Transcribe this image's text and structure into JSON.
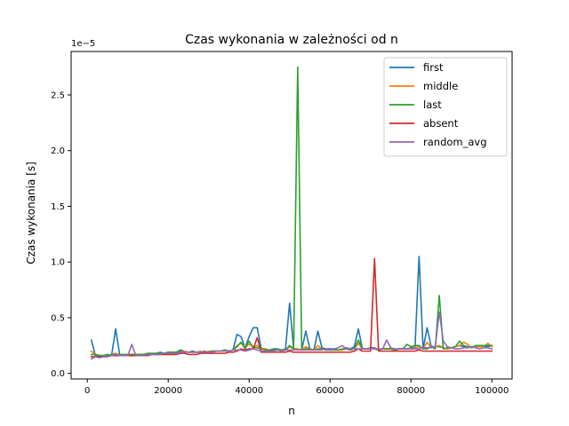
{
  "chart_data": {
    "type": "line",
    "title": "Czas wykonania w zależności od n",
    "xlabel": "n",
    "ylabel": "Czas wykonania [s]",
    "y_offset_label": "1e−5",
    "xlim": [
      -4000,
      105000
    ],
    "ylim": [
      -0.05,
      2.89
    ],
    "xticks": [
      0,
      20000,
      40000,
      60000,
      80000,
      100000
    ],
    "xtick_labels": [
      "0",
      "20000",
      "40000",
      "60000",
      "80000",
      "100000"
    ],
    "yticks": [
      0.0,
      0.5,
      1.0,
      1.5,
      2.0,
      2.5
    ],
    "ytick_labels": [
      "0.0",
      "0.5",
      "1.0",
      "1.5",
      "2.0",
      "2.5"
    ],
    "grid": false,
    "legend_position": "top-right",
    "x": [
      1000,
      2000,
      3000,
      4000,
      5000,
      6000,
      7000,
      8000,
      9000,
      10000,
      11000,
      12000,
      13000,
      14000,
      15000,
      16000,
      17000,
      18000,
      19000,
      20000,
      21000,
      22000,
      23000,
      24000,
      25000,
      26000,
      27000,
      28000,
      29000,
      30000,
      31000,
      32000,
      33000,
      34000,
      35000,
      36000,
      37000,
      38000,
      39000,
      40000,
      41000,
      42000,
      43000,
      44000,
      45000,
      46000,
      47000,
      48000,
      49000,
      50000,
      51000,
      52000,
      53000,
      54000,
      55000,
      56000,
      57000,
      58000,
      59000,
      60000,
      61000,
      62000,
      63000,
      64000,
      65000,
      66000,
      67000,
      68000,
      69000,
      70000,
      71000,
      72000,
      73000,
      74000,
      75000,
      76000,
      77000,
      78000,
      79000,
      80000,
      81000,
      82000,
      83000,
      84000,
      85000,
      86000,
      87000,
      88000,
      89000,
      90000,
      91000,
      92000,
      93000,
      94000,
      95000,
      96000,
      97000,
      98000,
      99000,
      100000
    ],
    "series": [
      {
        "name": "first",
        "color": "#1f77b4",
        "values": [
          0.3,
          0.16,
          0.15,
          0.16,
          0.17,
          0.16,
          0.4,
          0.17,
          0.16,
          0.17,
          0.17,
          0.17,
          0.17,
          0.17,
          0.18,
          0.17,
          0.18,
          0.19,
          0.18,
          0.19,
          0.19,
          0.19,
          0.21,
          0.2,
          0.19,
          0.2,
          0.19,
          0.19,
          0.2,
          0.19,
          0.2,
          0.2,
          0.2,
          0.21,
          0.2,
          0.21,
          0.35,
          0.33,
          0.23,
          0.33,
          0.41,
          0.41,
          0.22,
          0.22,
          0.21,
          0.22,
          0.22,
          0.21,
          0.22,
          0.63,
          0.22,
          0.22,
          0.21,
          0.38,
          0.22,
          0.21,
          0.38,
          0.23,
          0.22,
          0.22,
          0.22,
          0.21,
          0.21,
          0.23,
          0.22,
          0.24,
          0.4,
          0.22,
          0.22,
          0.23,
          0.23,
          0.21,
          0.22,
          0.22,
          0.22,
          0.21,
          0.22,
          0.22,
          0.22,
          0.23,
          0.23,
          1.05,
          0.22,
          0.41,
          0.24,
          0.24,
          0.24,
          0.23,
          0.22,
          0.23,
          0.24,
          0.25,
          0.24,
          0.23,
          0.24,
          0.24,
          0.24,
          0.24,
          0.24,
          0.25
        ]
      },
      {
        "name": "middle",
        "color": "#ff7f0e",
        "values": [
          0.2,
          0.17,
          0.16,
          0.16,
          0.16,
          0.17,
          0.18,
          0.16,
          0.16,
          0.17,
          0.17,
          0.17,
          0.17,
          0.17,
          0.18,
          0.18,
          0.18,
          0.18,
          0.18,
          0.19,
          0.19,
          0.19,
          0.2,
          0.2,
          0.19,
          0.19,
          0.19,
          0.2,
          0.19,
          0.2,
          0.2,
          0.2,
          0.2,
          0.21,
          0.2,
          0.21,
          0.25,
          0.27,
          0.24,
          0.26,
          0.24,
          0.25,
          0.22,
          0.22,
          0.21,
          0.21,
          0.22,
          0.21,
          0.21,
          0.24,
          0.22,
          0.22,
          0.21,
          0.24,
          0.22,
          0.21,
          0.25,
          0.22,
          0.21,
          0.21,
          0.21,
          0.21,
          0.21,
          0.22,
          0.21,
          0.22,
          0.27,
          0.22,
          0.22,
          0.22,
          0.23,
          0.21,
          0.22,
          0.22,
          0.22,
          0.21,
          0.22,
          0.22,
          0.22,
          0.22,
          0.23,
          0.24,
          0.22,
          0.28,
          0.23,
          0.24,
          0.25,
          0.23,
          0.22,
          0.23,
          0.24,
          0.25,
          0.28,
          0.26,
          0.23,
          0.24,
          0.24,
          0.24,
          0.27,
          0.24
        ]
      },
      {
        "name": "last",
        "color": "#2ca02c",
        "values": [
          0.17,
          0.17,
          0.16,
          0.16,
          0.16,
          0.17,
          0.17,
          0.17,
          0.17,
          0.17,
          0.17,
          0.17,
          0.17,
          0.17,
          0.18,
          0.18,
          0.18,
          0.18,
          0.18,
          0.19,
          0.19,
          0.19,
          0.2,
          0.19,
          0.19,
          0.19,
          0.19,
          0.19,
          0.19,
          0.19,
          0.2,
          0.2,
          0.2,
          0.21,
          0.2,
          0.21,
          0.24,
          0.28,
          0.22,
          0.29,
          0.23,
          0.23,
          0.22,
          0.21,
          0.21,
          0.21,
          0.22,
          0.21,
          0.21,
          0.25,
          0.22,
          2.75,
          0.21,
          0.22,
          0.22,
          0.21,
          0.22,
          0.22,
          0.21,
          0.21,
          0.21,
          0.21,
          0.22,
          0.22,
          0.21,
          0.22,
          0.3,
          0.22,
          0.22,
          0.22,
          0.22,
          0.21,
          0.22,
          0.22,
          0.22,
          0.21,
          0.22,
          0.22,
          0.26,
          0.24,
          0.25,
          0.25,
          0.22,
          0.22,
          0.24,
          0.22,
          0.7,
          0.22,
          0.23,
          0.23,
          0.24,
          0.29,
          0.25,
          0.24,
          0.23,
          0.25,
          0.25,
          0.25,
          0.25,
          0.25
        ]
      },
      {
        "name": "absent",
        "color": "#d62728",
        "values": [
          0.15,
          0.15,
          0.15,
          0.15,
          0.15,
          0.16,
          0.16,
          0.16,
          0.16,
          0.16,
          0.16,
          0.16,
          0.16,
          0.16,
          0.16,
          0.17,
          0.17,
          0.17,
          0.17,
          0.17,
          0.17,
          0.17,
          0.18,
          0.18,
          0.17,
          0.17,
          0.17,
          0.18,
          0.18,
          0.18,
          0.18,
          0.18,
          0.18,
          0.18,
          0.19,
          0.19,
          0.2,
          0.22,
          0.21,
          0.22,
          0.22,
          0.32,
          0.19,
          0.19,
          0.19,
          0.19,
          0.19,
          0.19,
          0.19,
          0.2,
          0.19,
          0.19,
          0.19,
          0.19,
          0.19,
          0.19,
          0.19,
          0.19,
          0.19,
          0.19,
          0.19,
          0.19,
          0.19,
          0.19,
          0.19,
          0.2,
          0.22,
          0.2,
          0.2,
          0.2,
          1.03,
          0.2,
          0.2,
          0.2,
          0.2,
          0.2,
          0.2,
          0.2,
          0.2,
          0.2,
          0.2,
          0.21,
          0.2,
          0.2,
          0.2,
          0.2,
          0.2,
          0.2,
          0.2,
          0.2,
          0.2,
          0.2,
          0.2,
          0.2,
          0.2,
          0.2,
          0.2,
          0.2,
          0.2,
          0.2
        ]
      },
      {
        "name": "random_avg",
        "color": "#9467bd",
        "values": [
          0.13,
          0.15,
          0.14,
          0.15,
          0.15,
          0.16,
          0.17,
          0.16,
          0.16,
          0.16,
          0.26,
          0.16,
          0.16,
          0.16,
          0.17,
          0.17,
          0.17,
          0.17,
          0.18,
          0.18,
          0.18,
          0.18,
          0.19,
          0.19,
          0.19,
          0.19,
          0.19,
          0.19,
          0.19,
          0.19,
          0.19,
          0.2,
          0.2,
          0.2,
          0.2,
          0.21,
          0.21,
          0.21,
          0.2,
          0.21,
          0.22,
          0.21,
          0.2,
          0.2,
          0.2,
          0.2,
          0.21,
          0.2,
          0.21,
          0.21,
          0.21,
          0.21,
          0.21,
          0.21,
          0.21,
          0.21,
          0.21,
          0.21,
          0.22,
          0.21,
          0.22,
          0.23,
          0.25,
          0.22,
          0.22,
          0.22,
          0.22,
          0.22,
          0.22,
          0.22,
          0.22,
          0.22,
          0.22,
          0.3,
          0.23,
          0.22,
          0.22,
          0.22,
          0.22,
          0.22,
          0.22,
          0.22,
          0.23,
          0.23,
          0.23,
          0.24,
          0.55,
          0.29,
          0.24,
          0.23,
          0.22,
          0.22,
          0.23,
          0.23,
          0.24,
          0.23,
          0.22,
          0.23,
          0.23,
          0.22
        ]
      }
    ]
  }
}
